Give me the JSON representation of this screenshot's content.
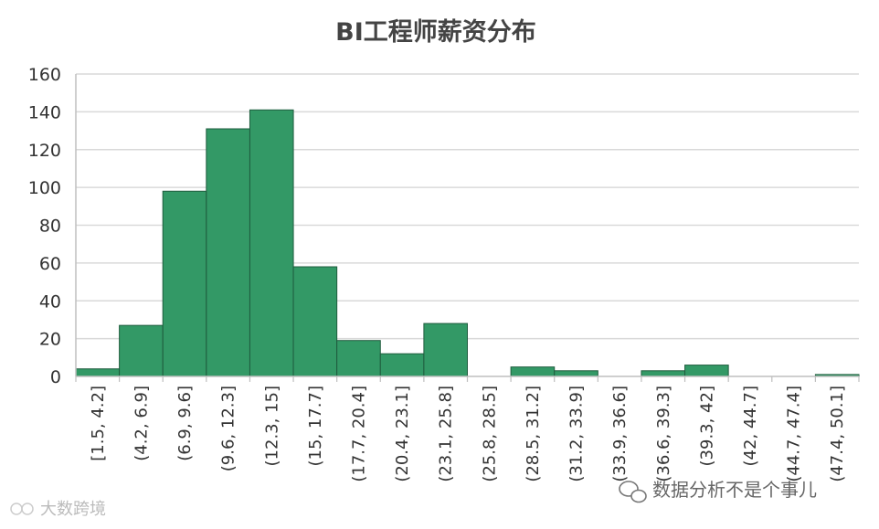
{
  "chart_data": {
    "type": "bar",
    "title": "BI工程师薪资分布",
    "categories": [
      "[1.5, 4.2]",
      "(4.2, 6.9]",
      "(6.9, 9.6]",
      "(9.6, 12.3]",
      "(12.3, 15]",
      "(15, 17.7]",
      "(17.7, 20.4]",
      "(20.4, 23.1]",
      "(23.1, 25.8]",
      "(25.8, 28.5]",
      "(28.5, 31.2]",
      "(31.2, 33.9]",
      "(33.9, 36.6]",
      "(36.6, 39.3]",
      "(39.3, 42]",
      "(42, 44.7]",
      "(44.7, 47.4]",
      "(47.4, 50.1]"
    ],
    "values": [
      4,
      27,
      98,
      131,
      141,
      58,
      19,
      12,
      28,
      0,
      5,
      3,
      0,
      3,
      6,
      0,
      0,
      1
    ],
    "ylim": [
      0,
      160
    ],
    "yticks": [
      0,
      20,
      40,
      60,
      80,
      100,
      120,
      140,
      160
    ],
    "grid": true,
    "bar_color": "#339966",
    "bar_edge_color": "#1f5c3e"
  },
  "watermarks": {
    "right": "数据分析不是个事儿",
    "left": "大数跨境"
  }
}
